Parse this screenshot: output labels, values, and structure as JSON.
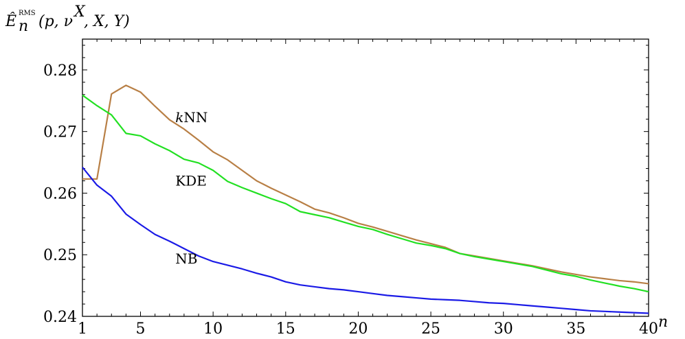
{
  "chart_data": {
    "type": "line",
    "title": "",
    "xlabel": "n",
    "ylabel": "Ê_n^RMS(p, ν^X, X, Y)",
    "xlim": [
      1,
      40
    ],
    "ylim": [
      0.24,
      0.285
    ],
    "grid": false,
    "xticks": [
      1,
      5,
      10,
      15,
      20,
      25,
      30,
      35,
      40
    ],
    "yticks": [
      0.24,
      0.25,
      0.26,
      0.27,
      0.28
    ],
    "ytick_labels": [
      "0.24",
      "0.25",
      "0.26",
      "0.27",
      "0.28"
    ],
    "x": [
      1,
      2,
      3,
      4,
      5,
      6,
      7,
      8,
      9,
      10,
      11,
      12,
      13,
      14,
      15,
      16,
      17,
      18,
      19,
      20,
      21,
      22,
      23,
      24,
      25,
      26,
      27,
      28,
      29,
      30,
      31,
      32,
      33,
      34,
      35,
      36,
      37,
      38,
      39,
      40
    ],
    "series": [
      {
        "name": "kNN",
        "color": "#b87f45",
        "label_at": [
          7.4,
          0.2715
        ],
        "values": [
          0.2623,
          0.2623,
          0.2761,
          0.2775,
          0.2764,
          0.2741,
          0.2719,
          0.2704,
          0.2686,
          0.2667,
          0.2654,
          0.2637,
          0.262,
          0.2608,
          0.2597,
          0.2586,
          0.2574,
          0.2568,
          0.256,
          0.2551,
          0.2545,
          0.2538,
          0.2531,
          0.2524,
          0.2518,
          0.2512,
          0.2502,
          0.2498,
          0.2494,
          0.249,
          0.2486,
          0.2482,
          0.2477,
          0.2472,
          0.2468,
          0.2464,
          0.2461,
          0.2458,
          0.2456,
          0.2453
        ]
      },
      {
        "name": "KDE",
        "color": "#22e022",
        "label_at": [
          7.4,
          0.2612
        ],
        "values": [
          0.2759,
          0.2742,
          0.2727,
          0.2697,
          0.2693,
          0.268,
          0.2669,
          0.2655,
          0.2649,
          0.2637,
          0.2619,
          0.2609,
          0.26,
          0.2591,
          0.2583,
          0.257,
          0.2565,
          0.256,
          0.2553,
          0.2546,
          0.2541,
          0.2533,
          0.2526,
          0.2519,
          0.2515,
          0.251,
          0.2502,
          0.2497,
          0.2493,
          0.2489,
          0.2485,
          0.2481,
          0.2475,
          0.2469,
          0.2465,
          0.2459,
          0.2454,
          0.2449,
          0.2445,
          0.244
        ]
      },
      {
        "name": "NB",
        "color": "#1a1ae6",
        "label_at": [
          7.4,
          0.2486
        ],
        "values": [
          0.2642,
          0.2613,
          0.2595,
          0.2566,
          0.2549,
          0.2533,
          0.2522,
          0.251,
          0.2498,
          0.2489,
          0.2483,
          0.2477,
          0.247,
          0.2464,
          0.2456,
          0.2451,
          0.2448,
          0.2445,
          0.2443,
          0.244,
          0.2437,
          0.2434,
          0.2432,
          0.243,
          0.2428,
          0.2427,
          0.2426,
          0.2424,
          0.2422,
          0.2421,
          0.2419,
          0.2417,
          0.2415,
          0.2413,
          0.2411,
          0.2409,
          0.2408,
          0.2407,
          0.2406,
          0.2405
        ]
      }
    ]
  }
}
